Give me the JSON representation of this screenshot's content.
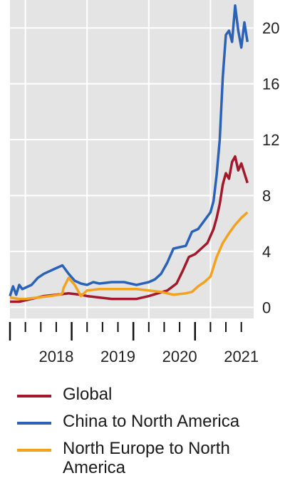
{
  "chart_data": {
    "type": "line",
    "title": "",
    "xlabel": "",
    "ylabel": "",
    "x_tick_labels": [
      "2018",
      "2019",
      "2020",
      "2021"
    ],
    "xlim": [
      2017.75,
      2021.7
    ],
    "y_ticks": [
      0,
      4,
      8,
      12,
      16,
      20
    ],
    "ylim": [
      -0.8,
      22
    ],
    "y_axis_position": "right",
    "grid": true,
    "legend_position": "bottom",
    "series": [
      {
        "name": "Global",
        "color": "#a3182b",
        "x": [
          2017.75,
          2017.9,
          2018.0,
          2018.1,
          2018.3,
          2018.5,
          2018.7,
          2018.9,
          2019.0,
          2019.2,
          2019.4,
          2019.6,
          2019.8,
          2020.0,
          2020.15,
          2020.3,
          2020.45,
          2020.55,
          2020.65,
          2020.75,
          2020.85,
          2020.95,
          2021.05,
          2021.1,
          2021.15,
          2021.2,
          2021.25,
          2021.3,
          2021.35,
          2021.4,
          2021.45,
          2021.5,
          2021.55,
          2021.6
        ],
        "values": [
          0.4,
          0.4,
          0.5,
          0.6,
          0.8,
          0.9,
          1.0,
          0.9,
          0.8,
          0.7,
          0.6,
          0.6,
          0.6,
          0.8,
          1.0,
          1.2,
          1.7,
          2.6,
          3.6,
          3.8,
          4.2,
          4.6,
          5.6,
          6.4,
          7.4,
          8.8,
          9.6,
          9.2,
          10.4,
          10.8,
          9.8,
          10.3,
          9.6,
          8.9
        ]
      },
      {
        "name": "China to North America",
        "color": "#2a62b8",
        "x": [
          2017.75,
          2017.8,
          2017.85,
          2017.9,
          2017.95,
          2018.0,
          2018.1,
          2018.2,
          2018.3,
          2018.4,
          2018.5,
          2018.6,
          2018.7,
          2018.8,
          2018.9,
          2019.0,
          2019.1,
          2019.2,
          2019.4,
          2019.6,
          2019.8,
          2020.0,
          2020.1,
          2020.2,
          2020.3,
          2020.4,
          2020.5,
          2020.6,
          2020.7,
          2020.8,
          2020.9,
          2021.0,
          2021.05,
          2021.1,
          2021.15,
          2021.2,
          2021.25,
          2021.3,
          2021.35,
          2021.4,
          2021.45,
          2021.5,
          2021.55,
          2021.6
        ],
        "values": [
          0.8,
          1.5,
          0.9,
          1.6,
          1.3,
          1.4,
          1.6,
          2.1,
          2.4,
          2.6,
          2.8,
          3.0,
          2.4,
          1.9,
          1.7,
          1.6,
          1.8,
          1.7,
          1.8,
          1.8,
          1.6,
          1.8,
          2.0,
          2.4,
          3.2,
          4.2,
          4.3,
          4.4,
          5.4,
          5.6,
          6.2,
          6.8,
          7.6,
          9.5,
          12.0,
          16.5,
          19.5,
          19.8,
          19.0,
          21.6,
          19.8,
          18.6,
          20.4,
          19.0
        ]
      },
      {
        "name": "North Europe to North America",
        "color": "#f2a21b",
        "x": [
          2017.75,
          2017.9,
          2018.0,
          2018.2,
          2018.4,
          2018.55,
          2018.6,
          2018.62,
          2018.7,
          2018.8,
          2018.9,
          2019.0,
          2019.2,
          2019.4,
          2019.6,
          2019.8,
          2020.0,
          2020.2,
          2020.4,
          2020.6,
          2020.7,
          2020.8,
          2020.9,
          2021.0,
          2021.1,
          2021.2,
          2021.3,
          2021.4,
          2021.5,
          2021.6
        ],
        "values": [
          0.7,
          0.6,
          0.6,
          0.7,
          0.8,
          0.9,
          1.0,
          1.4,
          2.1,
          1.6,
          0.8,
          1.2,
          1.3,
          1.3,
          1.3,
          1.3,
          1.2,
          1.1,
          0.9,
          1.0,
          1.1,
          1.5,
          1.8,
          2.2,
          3.6,
          4.6,
          5.3,
          5.9,
          6.4,
          6.8
        ]
      }
    ]
  }
}
